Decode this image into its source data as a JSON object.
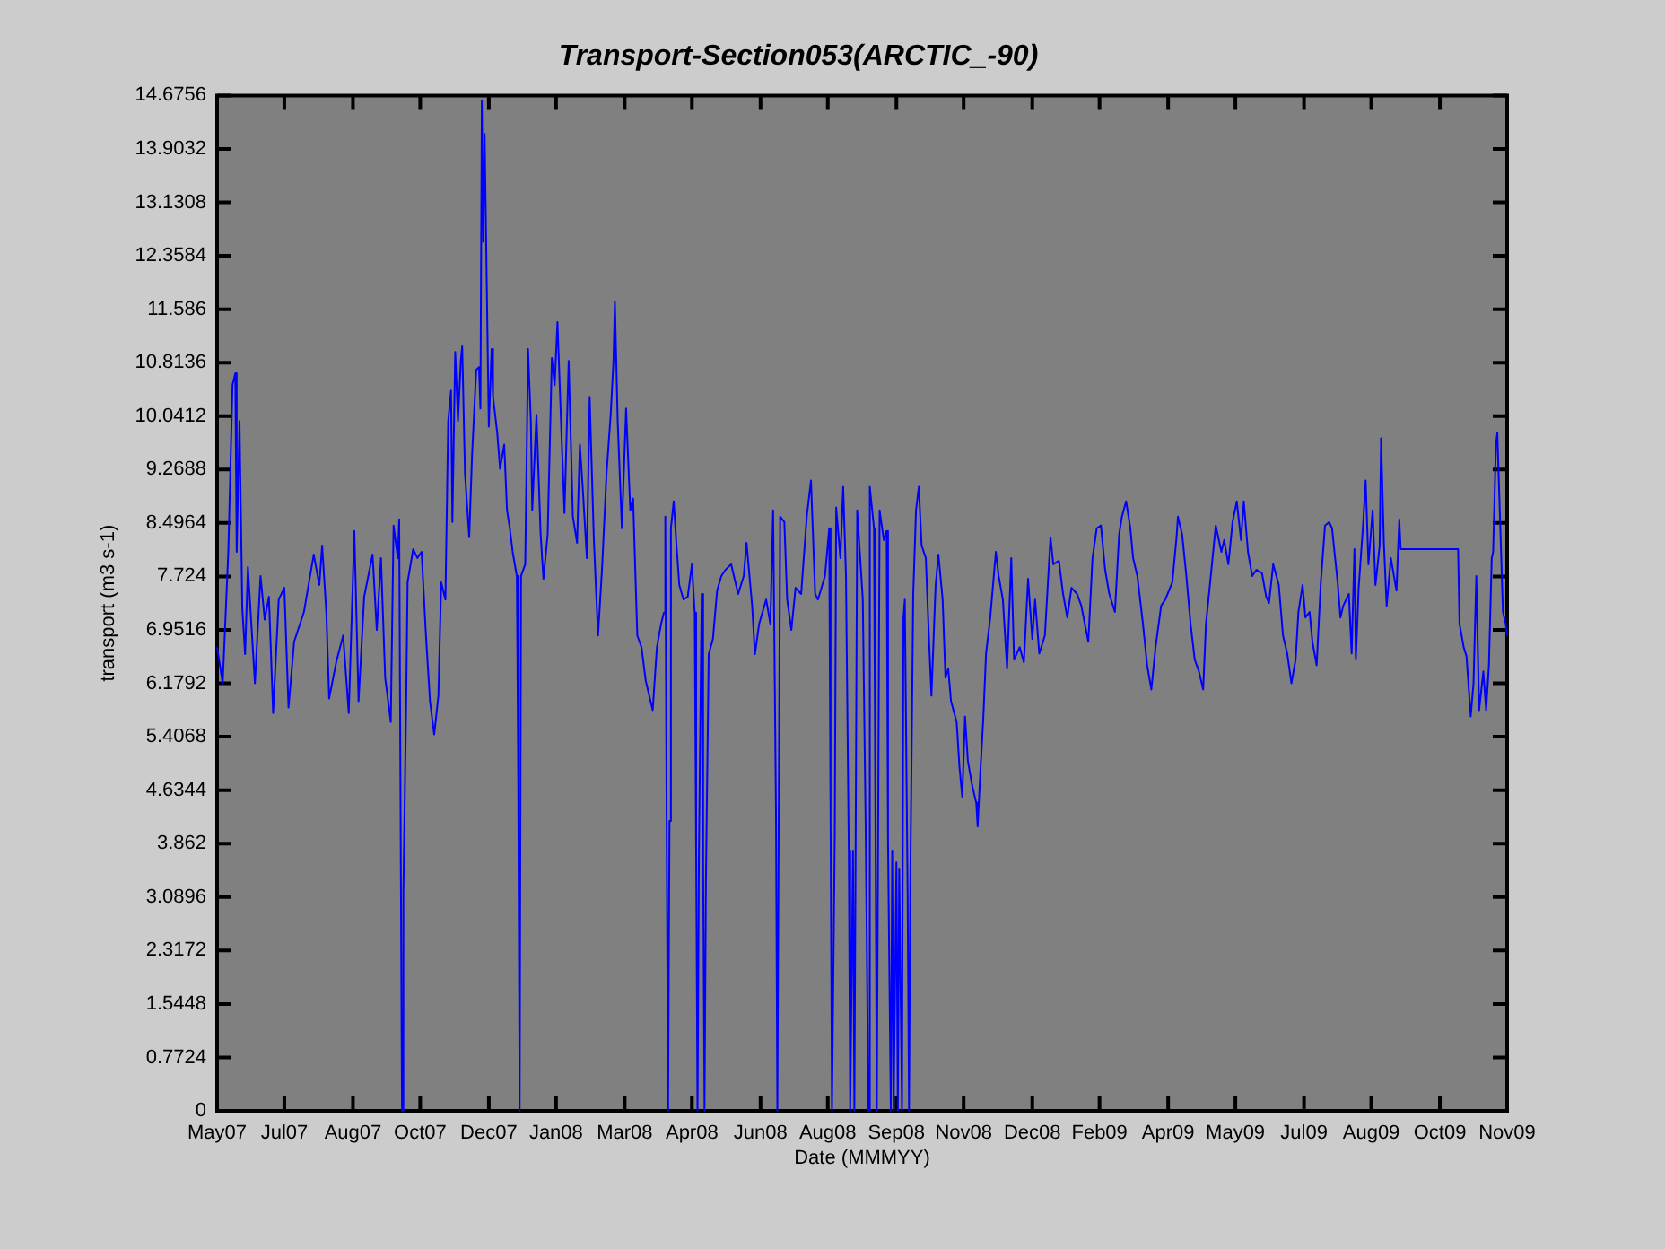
{
  "chart_data": {
    "type": "line",
    "title": "Transport-Section053(ARCTIC_-90)",
    "xlabel": "Date (MMMYY)",
    "ylabel": "transport (m3 s-1)",
    "marker": "none",
    "x": [
      "2007-05-24",
      "2007-05-28",
      "2007-06-01",
      "2007-06-04",
      "2007-06-06",
      "2007-06-07",
      "2007-06-09",
      "2007-06-11",
      "2007-06-13",
      "2007-06-15",
      "2007-06-20",
      "2007-06-24",
      "2007-06-27",
      "2007-06-30",
      "2007-07-03",
      "2007-07-07",
      "2007-07-11",
      "2007-07-14",
      "2007-07-18",
      "2007-07-25",
      "2007-08-01",
      "2007-08-05",
      "2007-08-07",
      "2007-08-10",
      "2007-08-12",
      "2007-08-17",
      "2007-08-22",
      "2007-08-26",
      "2007-08-30",
      "2007-09-02",
      "2007-09-06",
      "2007-09-12",
      "2007-09-15",
      "2007-09-18",
      "2007-09-21",
      "2007-09-25",
      "2007-09-27",
      "2007-09-30",
      "2007-10-01",
      "2007-10-02",
      "2007-10-03",
      "2007-10-04",
      "2007-10-06",
      "2007-10-07",
      "2007-10-11",
      "2007-10-14",
      "2007-10-17",
      "2007-10-20",
      "2007-10-23",
      "2007-10-26",
      "2007-10-29",
      "2007-10-31",
      "2007-11-03",
      "2007-11-05",
      "2007-11-07",
      "2007-11-08",
      "2007-11-10",
      "2007-11-12",
      "2007-11-14",
      "2007-11-15",
      "2007-11-17",
      "2007-11-20",
      "2007-11-22",
      "2007-11-25",
      "2007-11-27",
      "2007-11-28",
      "2007-11-29",
      "2007-11-30",
      "2007-12-01",
      "2007-12-03",
      "2007-12-04",
      "2007-12-06",
      "2007-12-07",
      "2007-12-10",
      "2007-12-12",
      "2007-12-15",
      "2007-12-17",
      "2007-12-19",
      "2007-12-21",
      "2007-12-24",
      "2007-12-25",
      "2007-12-26",
      "2007-12-27",
      "2007-12-30",
      "2008-01-01",
      "2008-01-03",
      "2008-01-04",
      "2008-01-07",
      "2008-01-10",
      "2008-01-12",
      "2008-01-15",
      "2008-01-18",
      "2008-01-20",
      "2008-01-22",
      "2008-01-25",
      "2008-01-27",
      "2008-01-30",
      "2008-02-02",
      "2008-02-05",
      "2008-02-07",
      "2008-02-09",
      "2008-02-12",
      "2008-02-14",
      "2008-02-17",
      "2008-02-20",
      "2008-02-23",
      "2008-02-26",
      "2008-02-29",
      "2008-03-02",
      "2008-03-03",
      "2008-03-05",
      "2008-03-08",
      "2008-03-11",
      "2008-03-14",
      "2008-03-16",
      "2008-03-19",
      "2008-03-22",
      "2008-03-25",
      "2008-03-28",
      "2008-03-30",
      "2008-04-02",
      "2008-04-05",
      "2008-04-07",
      "2008-04-08",
      "2008-04-09",
      "2008-04-10",
      "2008-04-11",
      "2008-04-12",
      "2008-04-14",
      "2008-04-16",
      "2008-04-18",
      "2008-04-21",
      "2008-04-24",
      "2008-04-27",
      "2008-04-29",
      "2008-04-30",
      "2008-05-01",
      "2008-05-02",
      "2008-05-04",
      "2008-05-05",
      "2008-05-06",
      "2008-05-07",
      "2008-05-09",
      "2008-05-12",
      "2008-05-15",
      "2008-05-18",
      "2008-05-21",
      "2008-05-25",
      "2008-05-30",
      "2008-06-03",
      "2008-06-05",
      "2008-06-09",
      "2008-06-11",
      "2008-06-14",
      "2008-06-19",
      "2008-06-22",
      "2008-06-24",
      "2008-06-26",
      "2008-06-27",
      "2008-06-29",
      "2008-07-02",
      "2008-07-04",
      "2008-07-07",
      "2008-07-10",
      "2008-07-14",
      "2008-07-18",
      "2008-07-21",
      "2008-07-24",
      "2008-07-26",
      "2008-07-31",
      "2008-08-03",
      "2008-08-04",
      "2008-08-05",
      "2008-08-07",
      "2008-08-08",
      "2008-08-11",
      "2008-08-13",
      "2008-08-15",
      "2008-08-17",
      "2008-08-18",
      "2008-08-20",
      "2008-08-21",
      "2008-08-23",
      "2008-08-27",
      "2008-08-29",
      "2008-08-31",
      "2008-09-01",
      "2008-09-04",
      "2008-09-05",
      "2008-09-06",
      "2008-09-08",
      "2008-09-11",
      "2008-09-13",
      "2008-09-14",
      "2008-09-16",
      "2008-09-17",
      "2008-09-18",
      "2008-09-20",
      "2008-09-21",
      "2008-09-22",
      "2008-09-24",
      "2008-09-25",
      "2008-09-26",
      "2008-09-28",
      "2008-09-29",
      "2008-09-30",
      "2008-10-02",
      "2008-10-04",
      "2008-10-06",
      "2008-10-08",
      "2008-10-11",
      "2008-10-13",
      "2008-10-15",
      "2008-10-18",
      "2008-10-20",
      "2008-10-23",
      "2008-10-25",
      "2008-10-27",
      "2008-10-29",
      "2008-11-02",
      "2008-11-04",
      "2008-11-06",
      "2008-11-08",
      "2008-11-10",
      "2008-11-13",
      "2008-11-16",
      "2008-11-17",
      "2008-11-19",
      "2008-11-21",
      "2008-11-23",
      "2008-11-26",
      "2008-11-30",
      "2008-12-02",
      "2008-12-05",
      "2008-12-08",
      "2008-12-11",
      "2008-12-13",
      "2008-12-17",
      "2008-12-20",
      "2008-12-23",
      "2008-12-26",
      "2008-12-28",
      "2008-12-31",
      "2009-01-04",
      "2009-01-08",
      "2009-01-10",
      "2009-01-14",
      "2009-01-17",
      "2009-01-20",
      "2009-01-23",
      "2009-01-27",
      "2009-01-30",
      "2009-02-04",
      "2009-02-07",
      "2009-02-10",
      "2009-02-13",
      "2009-02-16",
      "2009-02-19",
      "2009-02-23",
      "2009-02-26",
      "2009-02-28",
      "2009-03-03",
      "2009-03-06",
      "2009-03-08",
      "2009-03-11",
      "2009-03-15",
      "2009-03-18",
      "2009-03-21",
      "2009-03-24",
      "2009-03-28",
      "2009-03-31",
      "2009-04-05",
      "2009-04-08",
      "2009-04-09",
      "2009-04-12",
      "2009-04-15",
      "2009-04-18",
      "2009-04-21",
      "2009-04-24",
      "2009-04-27",
      "2009-04-29",
      "2009-05-02",
      "2009-05-06",
      "2009-05-10",
      "2009-05-12",
      "2009-05-15",
      "2009-05-18",
      "2009-05-21",
      "2009-05-24",
      "2009-05-26",
      "2009-05-29",
      "2009-06-01",
      "2009-06-04",
      "2009-06-08",
      "2009-06-11",
      "2009-06-13",
      "2009-06-16",
      "2009-06-20",
      "2009-06-23",
      "2009-06-26",
      "2009-06-29",
      "2009-07-02",
      "2009-07-04",
      "2009-07-07",
      "2009-07-09",
      "2009-07-12",
      "2009-07-14",
      "2009-07-17",
      "2009-07-20",
      "2009-07-23",
      "2009-07-26",
      "2009-07-28",
      "2009-08-01",
      "2009-08-03",
      "2009-08-05",
      "2009-08-09",
      "2009-08-11",
      "2009-08-13",
      "2009-08-14",
      "2009-08-16",
      "2009-08-19",
      "2009-08-21",
      "2009-08-23",
      "2009-08-26",
      "2009-08-28",
      "2009-08-31",
      "2009-09-01",
      "2009-09-03",
      "2009-09-05",
      "2009-09-08",
      "2009-09-12",
      "2009-09-14",
      "2009-09-15",
      "2009-10-26",
      "2009-10-27",
      "2009-10-30",
      "2009-11-01",
      "2009-11-04",
      "2009-11-06",
      "2009-11-08",
      "2009-11-10",
      "2009-11-13",
      "2009-11-15",
      "2009-11-17",
      "2009-11-19",
      "2009-11-20",
      "2009-11-22",
      "2009-11-23",
      "2009-11-25",
      "2009-11-27",
      "2009-11-29",
      "2009-11-30"
    ],
    "xlim": [
      "2007-05-24",
      "2009-11-30"
    ],
    "xticks": [
      {
        "value": "2007-05-24",
        "label": "May07"
      },
      {
        "value": "2007-07-11",
        "label": "Jul07"
      },
      {
        "value": "2007-08-29",
        "label": "Aug07"
      },
      {
        "value": "2007-10-16",
        "label": "Oct07"
      },
      {
        "value": "2007-12-04",
        "label": "Dec07"
      },
      {
        "value": "2008-01-21",
        "label": "Jan08"
      },
      {
        "value": "2008-03-10",
        "label": "Mar08"
      },
      {
        "value": "2008-04-27",
        "label": "Apr08"
      },
      {
        "value": "2008-06-15",
        "label": "Jun08"
      },
      {
        "value": "2008-08-02",
        "label": "Aug08"
      },
      {
        "value": "2008-09-20",
        "label": "Sep08"
      },
      {
        "value": "2008-11-07",
        "label": "Nov08"
      },
      {
        "value": "2008-12-26",
        "label": "Dec08"
      },
      {
        "value": "2009-02-12",
        "label": "Feb09"
      },
      {
        "value": "2009-04-02",
        "label": "Apr09"
      },
      {
        "value": "2009-05-20",
        "label": "May09"
      },
      {
        "value": "2009-07-08",
        "label": "Jul09"
      },
      {
        "value": "2009-08-25",
        "label": "Aug09"
      },
      {
        "value": "2009-10-13",
        "label": "Oct09"
      },
      {
        "value": "2009-11-30",
        "label": "Nov09"
      }
    ],
    "series": [
      {
        "color": "#0000ff",
        "values": [
          6.7,
          6.18,
          8.08,
          10.49,
          10.66,
          8.08,
          9.97,
          7.26,
          6.6,
          7.86,
          6.18,
          7.73,
          7.1,
          7.43,
          5.75,
          7.39,
          7.56,
          5.83,
          6.78,
          7.21,
          8.04,
          7.6,
          8.17,
          7.2,
          5.96,
          6.48,
          6.87,
          5.75,
          8.38,
          5.92,
          7.43,
          8.04,
          6.95,
          7.99,
          6.26,
          5.62,
          8.46,
          7.99,
          8.55,
          4.28,
          0,
          3.16,
          5.92,
          7.64,
          8.12,
          7.99,
          8.08,
          6.91,
          5.92,
          5.44,
          6.0,
          7.64,
          7.39,
          9.97,
          10.41,
          8.51,
          10.97,
          9.97,
          10.84,
          11.05,
          9.2,
          8.29,
          9.46,
          10.71,
          10.75,
          10.15,
          14.6,
          12.56,
          14.12,
          11.27,
          9.89,
          11.01,
          10.32,
          9.8,
          9.28,
          9.63,
          8.68,
          8.42,
          8.08,
          7.73,
          4.8,
          0,
          7.73,
          7.9,
          11.01,
          9.97,
          8.68,
          10.06,
          8.33,
          7.69,
          8.33,
          10.88,
          10.49,
          11.4,
          9.72,
          8.64,
          10.84,
          8.59,
          8.21,
          9.63,
          9.02,
          7.99,
          10.32,
          8.25,
          6.87,
          7.9,
          9.2,
          10.06,
          10.84,
          11.7,
          9.97,
          8.42,
          10.15,
          8.68,
          8.85,
          6.87,
          6.7,
          6.22,
          5.96,
          5.79,
          6.7,
          7.04,
          7.2,
          8.59,
          3.93,
          0,
          4.19,
          8.42,
          8.81,
          8.17,
          7.6,
          7.39,
          7.43,
          7.9,
          7.2,
          3.8,
          0,
          3.76,
          7.47,
          3.59,
          0,
          3.33,
          6.6,
          6.82,
          7.52,
          7.73,
          7.82,
          7.9,
          7.47,
          7.73,
          8.21,
          7.3,
          6.6,
          7.04,
          7.39,
          7.04,
          8.68,
          4.37,
          0,
          8.59,
          8.51,
          7.39,
          6.95,
          7.56,
          7.47,
          8.59,
          9.11,
          7.47,
          7.39,
          7.73,
          8.42,
          4.19,
          0,
          4.02,
          8.72,
          7.99,
          9.02,
          7.73,
          3.76,
          0,
          3.76,
          0,
          8.68,
          7.39,
          4.19,
          0,
          9.02,
          8.42,
          4.28,
          0,
          8.68,
          8.25,
          8.38,
          3.93,
          0,
          3.76,
          0,
          3.59,
          0,
          3.5,
          0,
          7.13,
          7.39,
          3.16,
          0,
          3.5,
          7.47,
          8.68,
          9.02,
          8.17,
          7.99,
          6.95,
          6.0,
          7.6,
          8.04,
          7.39,
          6.26,
          6.39,
          5.92,
          5.62,
          4.97,
          4.54,
          5.7,
          5.06,
          4.71,
          4.45,
          4.11,
          4.93,
          5.66,
          6.61,
          7.13,
          8.08,
          7.73,
          7.39,
          6.39,
          7.99,
          6.52,
          6.7,
          6.48,
          7.69,
          6.82,
          7.39,
          6.61,
          6.87,
          8.29,
          7.9,
          7.95,
          7.47,
          7.13,
          7.56,
          7.47,
          7.3,
          6.78,
          7.99,
          8.42,
          8.46,
          7.82,
          7.47,
          7.21,
          8.33,
          8.59,
          8.81,
          8.42,
          7.99,
          7.73,
          7.04,
          6.44,
          6.09,
          6.7,
          7.3,
          7.39,
          7.64,
          8.29,
          8.59,
          8.33,
          7.73,
          7.04,
          6.52,
          6.35,
          6.09,
          7.04,
          7.64,
          8.46,
          8.08,
          8.25,
          7.9,
          8.51,
          8.81,
          8.25,
          8.81,
          8.08,
          7.73,
          7.82,
          7.77,
          7.43,
          7.34,
          7.9,
          7.6,
          6.87,
          6.61,
          6.18,
          6.52,
          7.21,
          7.6,
          7.13,
          7.21,
          6.78,
          6.44,
          7.64,
          8.46,
          8.51,
          8.42,
          7.64,
          7.13,
          7.3,
          7.47,
          6.61,
          8.12,
          6.52,
          7.56,
          8.42,
          9.11,
          7.9,
          8.68,
          7.6,
          8.17,
          9.72,
          8.21,
          7.3,
          7.99,
          7.52,
          8.55,
          8.12,
          8.12,
          7.04,
          6.7,
          6.57,
          5.7,
          6.18,
          7.73,
          5.79,
          6.35,
          5.79,
          6.44,
          7.99,
          8.08,
          9.63,
          9.8,
          8.51,
          7.21,
          7.04,
          6.87
        ]
      }
    ],
    "ylim": [
      0,
      14.6756
    ],
    "yticks": [
      0,
      0.7724,
      1.5448,
      2.3172,
      3.0896,
      3.862,
      4.6344,
      5.4068,
      6.1792,
      6.9516,
      7.724,
      8.4964,
      9.2688,
      10.0412,
      10.8136,
      11.586,
      12.3584,
      13.1308,
      13.9032,
      14.6756
    ]
  }
}
